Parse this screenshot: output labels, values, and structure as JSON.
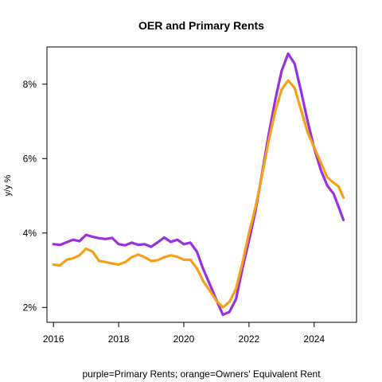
{
  "chart_data": {
    "type": "line",
    "title": "OER and Primary Rents",
    "xlabel": "purple=Primary Rents; orange=Owners' Equivalent Rent",
    "ylabel": "y/y %",
    "xlim": [
      2015.8,
      2025.3
    ],
    "ylim": [
      1.6,
      9.0
    ],
    "x_ticks": [
      2016,
      2018,
      2020,
      2022,
      2024
    ],
    "x_tick_labels": [
      "2016",
      "2018",
      "2020",
      "2022",
      "2024"
    ],
    "y_ticks": [
      2,
      4,
      6,
      8
    ],
    "y_tick_labels": [
      "2%",
      "4%",
      "6%",
      "8%"
    ],
    "grid": false,
    "legend": "none",
    "series": [
      {
        "color": "#9b30e0",
        "points": [
          [
            2016.0,
            3.7
          ],
          [
            2016.2,
            3.68
          ],
          [
            2016.4,
            3.75
          ],
          [
            2016.6,
            3.82
          ],
          [
            2016.8,
            3.78
          ],
          [
            2017.0,
            3.95
          ],
          [
            2017.2,
            3.9
          ],
          [
            2017.4,
            3.86
          ],
          [
            2017.6,
            3.84
          ],
          [
            2017.8,
            3.87
          ],
          [
            2018.0,
            3.7
          ],
          [
            2018.2,
            3.67
          ],
          [
            2018.4,
            3.74
          ],
          [
            2018.6,
            3.68
          ],
          [
            2018.8,
            3.7
          ],
          [
            2019.0,
            3.63
          ],
          [
            2019.2,
            3.75
          ],
          [
            2019.4,
            3.88
          ],
          [
            2019.6,
            3.76
          ],
          [
            2019.8,
            3.82
          ],
          [
            2020.0,
            3.7
          ],
          [
            2020.2,
            3.74
          ],
          [
            2020.4,
            3.5
          ],
          [
            2020.6,
            3.02
          ],
          [
            2020.8,
            2.62
          ],
          [
            2021.0,
            2.2
          ],
          [
            2021.2,
            1.8
          ],
          [
            2021.4,
            1.88
          ],
          [
            2021.6,
            2.22
          ],
          [
            2021.8,
            3.05
          ],
          [
            2022.0,
            3.8
          ],
          [
            2022.2,
            4.6
          ],
          [
            2022.4,
            5.6
          ],
          [
            2022.6,
            6.62
          ],
          [
            2022.8,
            7.55
          ],
          [
            2023.0,
            8.35
          ],
          [
            2023.2,
            8.82
          ],
          [
            2023.4,
            8.55
          ],
          [
            2023.6,
            7.8
          ],
          [
            2023.8,
            7.0
          ],
          [
            2024.0,
            6.28
          ],
          [
            2024.2,
            5.7
          ],
          [
            2024.4,
            5.28
          ],
          [
            2024.6,
            5.05
          ],
          [
            2024.75,
            4.7
          ],
          [
            2024.9,
            4.35
          ]
        ]
      },
      {
        "color": "#f5a11a",
        "points": [
          [
            2016.0,
            3.15
          ],
          [
            2016.2,
            3.13
          ],
          [
            2016.4,
            3.28
          ],
          [
            2016.6,
            3.32
          ],
          [
            2016.8,
            3.4
          ],
          [
            2017.0,
            3.58
          ],
          [
            2017.2,
            3.5
          ],
          [
            2017.4,
            3.25
          ],
          [
            2017.6,
            3.22
          ],
          [
            2017.8,
            3.18
          ],
          [
            2018.0,
            3.15
          ],
          [
            2018.2,
            3.22
          ],
          [
            2018.4,
            3.35
          ],
          [
            2018.6,
            3.42
          ],
          [
            2018.8,
            3.35
          ],
          [
            2019.0,
            3.25
          ],
          [
            2019.2,
            3.27
          ],
          [
            2019.4,
            3.35
          ],
          [
            2019.6,
            3.4
          ],
          [
            2019.8,
            3.36
          ],
          [
            2020.0,
            3.28
          ],
          [
            2020.2,
            3.28
          ],
          [
            2020.4,
            3.05
          ],
          [
            2020.6,
            2.7
          ],
          [
            2020.8,
            2.45
          ],
          [
            2021.0,
            2.18
          ],
          [
            2021.2,
            2.0
          ],
          [
            2021.4,
            2.15
          ],
          [
            2021.6,
            2.5
          ],
          [
            2021.8,
            3.2
          ],
          [
            2022.0,
            4.0
          ],
          [
            2022.2,
            4.7
          ],
          [
            2022.4,
            5.55
          ],
          [
            2022.6,
            6.45
          ],
          [
            2022.8,
            7.25
          ],
          [
            2023.0,
            7.85
          ],
          [
            2023.2,
            8.1
          ],
          [
            2023.4,
            7.9
          ],
          [
            2023.6,
            7.3
          ],
          [
            2023.8,
            6.7
          ],
          [
            2024.0,
            6.3
          ],
          [
            2024.2,
            5.9
          ],
          [
            2024.4,
            5.5
          ],
          [
            2024.6,
            5.35
          ],
          [
            2024.75,
            5.25
          ],
          [
            2024.9,
            4.95
          ]
        ]
      }
    ]
  }
}
